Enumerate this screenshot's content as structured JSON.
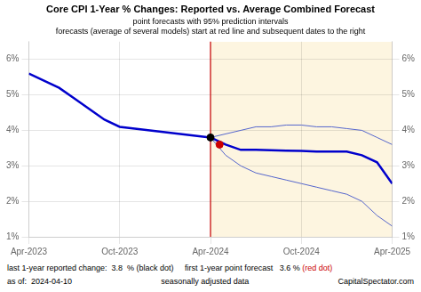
{
  "chart_data": {
    "type": "line",
    "title": "Core CPI 1-Year % Changes: Reported vs. Average Combined Forecast",
    "subtitle": [
      "point forecasts with 95% prediction intervals",
      "forecasts (average of several models) start at red line and subsequent dates to the right"
    ],
    "xlim": [
      0,
      24
    ],
    "xticks": [
      {
        "value": 0,
        "label": "Apr-2023"
      },
      {
        "value": 6,
        "label": "Oct-2023"
      },
      {
        "value": 12,
        "label": "Apr-2024"
      },
      {
        "value": 18,
        "label": "Oct-2024"
      },
      {
        "value": 24,
        "label": "Apr-2025"
      }
    ],
    "ylim": [
      0.01,
      0.065
    ],
    "yticks": [
      {
        "value": 0.01,
        "label": "1%"
      },
      {
        "value": 0.02,
        "label": "2%"
      },
      {
        "value": 0.03,
        "label": "3%"
      },
      {
        "value": 0.04,
        "label": "4%"
      },
      {
        "value": 0.05,
        "label": "5%"
      },
      {
        "value": 0.06,
        "label": "6%"
      }
    ],
    "y2lim": [
      0.01,
      0.065
    ],
    "y2ticks": [
      {
        "value": 0.01,
        "label": "1%"
      },
      {
        "value": 0.02,
        "label": "2%"
      },
      {
        "value": 0.03,
        "label": "3%"
      },
      {
        "value": 0.04,
        "label": "4%"
      },
      {
        "value": 0.05,
        "label": "5%"
      },
      {
        "value": 0.06,
        "label": "6%"
      }
    ],
    "grid": true,
    "series": [
      {
        "x": [
          0,
          1,
          2,
          3,
          4,
          5,
          6,
          7,
          8,
          9,
          10,
          11,
          12
        ],
        "values": [
          0.056,
          0.054,
          0.052,
          0.049,
          0.046,
          0.043,
          0.041,
          0.0405,
          0.04,
          0.0395,
          0.039,
          0.0385,
          0.038
        ],
        "color": "#0000cc"
      },
      {
        "x": [
          12,
          13,
          14,
          15,
          16,
          17,
          18,
          19,
          20,
          21,
          22,
          23,
          24
        ],
        "values": [
          0.038,
          0.036,
          0.0345,
          0.0345,
          0.0344,
          0.0343,
          0.0342,
          0.034,
          0.034,
          0.034,
          0.033,
          0.031,
          0.025
        ],
        "color": "#0000cc"
      },
      {
        "x": [
          12,
          13,
          14,
          15,
          16,
          17,
          18,
          19,
          20,
          21,
          22,
          23,
          24
        ],
        "values": [
          0.038,
          0.039,
          0.04,
          0.041,
          0.041,
          0.0415,
          0.0415,
          0.041,
          0.041,
          0.0405,
          0.04,
          0.038,
          0.036
        ],
        "color": "#5566cc",
        "line_style": "thin"
      },
      {
        "x": [
          12,
          13,
          14,
          15,
          16,
          17,
          18,
          19,
          20,
          21,
          22,
          23,
          24
        ],
        "values": [
          0.038,
          0.033,
          0.03,
          0.028,
          0.027,
          0.026,
          0.025,
          0.024,
          0.023,
          0.022,
          0.02,
          0.016,
          0.013
        ],
        "color": "#5566cc",
        "line_style": "thin"
      },
      {
        "type": "scatter",
        "x": [
          12
        ],
        "values": [
          0.038
        ],
        "color": "#000000",
        "marker": "circle"
      },
      {
        "type": "scatter",
        "x": [
          12.6
        ],
        "values": [
          0.036
        ],
        "color": "#cc0000",
        "marker": "circle"
      }
    ],
    "reference_lines": [
      {
        "x": 12,
        "color": "#cc0000"
      }
    ],
    "shaded_regions": [
      {
        "x": [
          12,
          24
        ],
        "color": "#fdf5e0"
      }
    ],
    "annotations": [
      [
        {
          "text": "last 1-year reported change:  3.8  % (black dot)     first 1-year point forecast   3.6 % "
        },
        {
          "text": "(red dot)",
          "color": "#cc0000"
        }
      ],
      [
        {
          "text": "as of:  2024-04-10"
        },
        {
          "text": "seasonally adjusted data"
        },
        {
          "text": "CapitalSpectator.com"
        }
      ]
    ]
  }
}
